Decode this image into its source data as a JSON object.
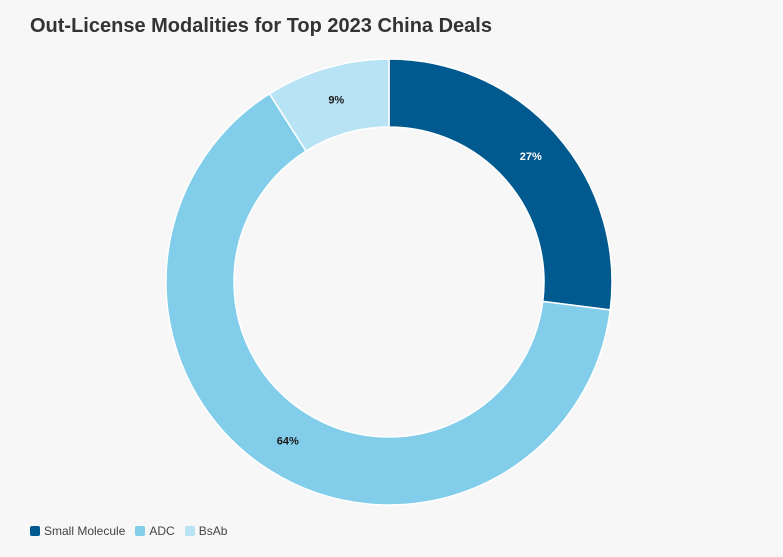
{
  "chart_data": {
    "type": "pie",
    "title": "Out-License Modalities for Top 2023 China Deals",
    "categories": [
      "Small Molecule",
      "ADC",
      "BsAb"
    ],
    "values": [
      27,
      64,
      9
    ],
    "labels": [
      "27%",
      "64%",
      "9%"
    ],
    "colors": [
      "#005a8f",
      "#82cdea",
      "#b8e3f5"
    ],
    "label_colors": [
      "#ffffff",
      "#1a1a1a",
      "#1a1a1a"
    ],
    "donut": true,
    "legend": {
      "position": "bottom-left"
    }
  }
}
